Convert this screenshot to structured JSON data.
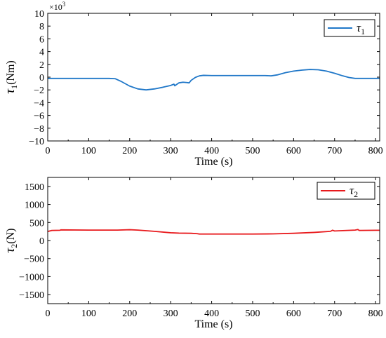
{
  "chart_data": [
    {
      "type": "line",
      "xlabel": "Time (s)",
      "ylabel_symbol": "τ",
      "ylabel_sub": "1",
      "ylabel_unit": "(Nm)",
      "y_multiplier_base": "×10",
      "y_multiplier_exp": "3",
      "xlim": [
        0,
        810
      ],
      "ylim": [
        -10,
        10
      ],
      "xticks": [
        0,
        100,
        200,
        300,
        400,
        500,
        600,
        700,
        800
      ],
      "yticks": [
        -10,
        -8,
        -6,
        -4,
        -2,
        0,
        2,
        4,
        6,
        8,
        10
      ],
      "grid": false,
      "legend_position": "top-right",
      "series": [
        {
          "name_symbol": "τ",
          "name_sub": "1",
          "color": "#1f77c8",
          "x": [
            0,
            50,
            100,
            150,
            165,
            180,
            200,
            220,
            240,
            260,
            280,
            300,
            308,
            310,
            320,
            330,
            340,
            345,
            350,
            360,
            370,
            380,
            400,
            450,
            500,
            530,
            545,
            560,
            580,
            600,
            620,
            640,
            660,
            680,
            700,
            720,
            735,
            750,
            800,
            810
          ],
          "y": [
            -0.2,
            -0.2,
            -0.2,
            -0.2,
            -0.25,
            -0.7,
            -1.4,
            -1.85,
            -2.0,
            -1.85,
            -1.6,
            -1.3,
            -1.1,
            -1.35,
            -0.9,
            -0.8,
            -0.85,
            -0.9,
            -0.5,
            -0.05,
            0.2,
            0.28,
            0.25,
            0.25,
            0.25,
            0.25,
            0.2,
            0.35,
            0.7,
            0.95,
            1.1,
            1.2,
            1.15,
            0.95,
            0.6,
            0.2,
            -0.05,
            -0.2,
            -0.2,
            -0.2
          ]
        }
      ]
    },
    {
      "type": "line",
      "xlabel": "Time (s)",
      "ylabel_symbol": "τ",
      "ylabel_sub": "2",
      "ylabel_unit": "(N)",
      "xlim": [
        0,
        810
      ],
      "ylim": [
        -1750,
        1750
      ],
      "xticks": [
        0,
        100,
        200,
        300,
        400,
        500,
        600,
        700,
        800
      ],
      "yticks": [
        -1500,
        -1000,
        -500,
        0,
        500,
        1000,
        1500
      ],
      "ytick_labels": [
        "−1500",
        "−1000",
        "−500",
        "0",
        "500",
        "1000",
        "1500"
      ],
      "grid": false,
      "legend_position": "top-right",
      "series": [
        {
          "name_symbol": "τ",
          "name_sub": "2",
          "color": "#e8191c",
          "x": [
            0,
            10,
            30,
            32,
            100,
            170,
            200,
            220,
            260,
            300,
            320,
            350,
            365,
            370,
            400,
            500,
            550,
            600,
            650,
            690,
            695,
            700,
            720,
            750,
            757,
            760,
            800,
            810
          ],
          "y": [
            250,
            280,
            285,
            295,
            290,
            290,
            300,
            290,
            255,
            215,
            205,
            200,
            190,
            180,
            180,
            180,
            185,
            200,
            225,
            255,
            285,
            265,
            275,
            290,
            305,
            280,
            285,
            285
          ]
        }
      ]
    }
  ]
}
